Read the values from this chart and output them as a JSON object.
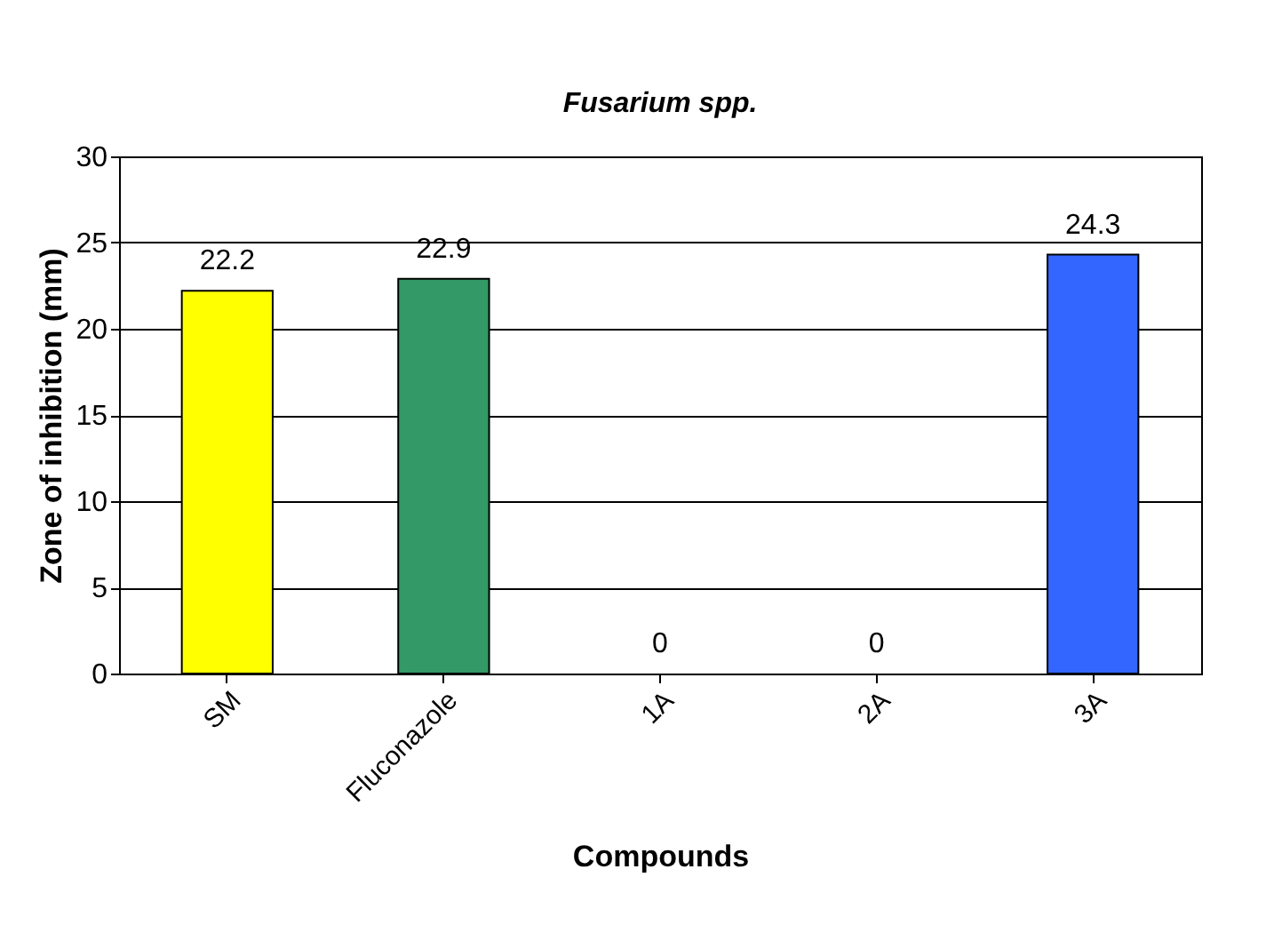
{
  "chart_data": {
    "type": "bar",
    "title": "Fusarium spp.",
    "xlabel": "Compounds",
    "ylabel": "Zone of inhibition (mm)",
    "categories": [
      "SM",
      "Fluconazole",
      "1A",
      "2A",
      "3A"
    ],
    "values": [
      22.2,
      22.9,
      0,
      0,
      24.3
    ],
    "colors": [
      "#ffff00",
      "#339966",
      null,
      null,
      "#3366ff"
    ],
    "ylim": [
      0,
      30
    ],
    "yticks": [
      0,
      5,
      10,
      15,
      20,
      25,
      30
    ],
    "grid": "y",
    "data_labels": true
  }
}
